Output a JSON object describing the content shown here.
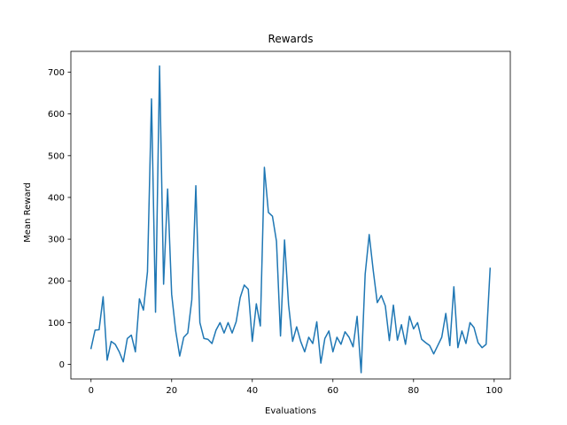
{
  "chart_data": {
    "type": "line",
    "title": "Rewards",
    "xlabel": "Evaluations",
    "ylabel": "Mean Reward",
    "xlim": [
      -5,
      104
    ],
    "ylim": [
      -35,
      750
    ],
    "xticks": [
      0,
      20,
      40,
      60,
      80,
      100
    ],
    "yticks": [
      0,
      100,
      200,
      300,
      400,
      500,
      600,
      700
    ],
    "grid": false,
    "colors": {
      "line": "#1f77b4"
    },
    "series": [
      {
        "x": [
          0,
          1,
          2,
          3,
          4,
          5,
          6,
          7,
          8,
          9,
          10,
          11,
          12,
          13,
          14,
          15,
          16,
          17,
          18,
          19,
          20,
          21,
          22,
          23,
          24,
          25,
          26,
          27,
          28,
          29,
          30,
          31,
          32,
          33,
          34,
          35,
          36,
          37,
          38,
          39,
          40,
          41,
          42,
          43,
          44,
          45,
          46,
          47,
          48,
          49,
          50,
          51,
          52,
          53,
          54,
          55,
          56,
          57,
          58,
          59,
          60,
          61,
          62,
          63,
          64,
          65,
          66,
          67,
          68,
          69,
          70,
          71,
          72,
          73,
          74,
          75,
          76,
          77,
          78,
          79,
          80,
          81,
          82,
          83,
          84,
          85,
          86,
          87,
          88,
          89,
          90,
          91,
          92,
          93,
          94,
          95,
          96,
          97,
          98,
          99
        ],
        "values": [
          38,
          82,
          83,
          162,
          10,
          55,
          48,
          30,
          6,
          62,
          70,
          30,
          157,
          130,
          222,
          636,
          125,
          715,
          192,
          420,
          168,
          80,
          20,
          65,
          75,
          155,
          428,
          100,
          62,
          60,
          50,
          82,
          100,
          75,
          100,
          75,
          102,
          160,
          190,
          180,
          55,
          145,
          92,
          472,
          364,
          355,
          295,
          68,
          298,
          143,
          55,
          90,
          55,
          30,
          65,
          50,
          102,
          3,
          62,
          80,
          30,
          65,
          48,
          78,
          65,
          42,
          115,
          -20,
          216,
          311,
          225,
          148,
          165,
          140,
          57,
          142,
          58,
          95,
          48,
          115,
          85,
          100,
          60,
          52,
          45,
          25,
          45,
          65,
          122,
          45,
          186,
          40,
          80,
          50,
          100,
          88,
          52,
          40,
          48,
          230
        ]
      }
    ]
  }
}
